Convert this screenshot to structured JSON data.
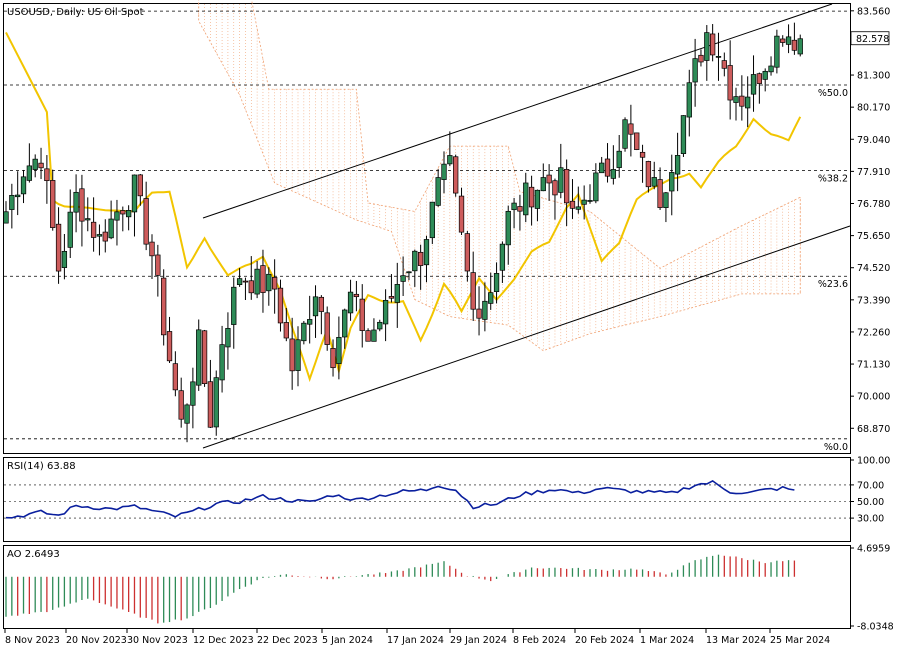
{
  "header": {
    "main_title": "USOUSD, Daily:  US Oil Spot",
    "rsi_title": "RSI(14) 63.88",
    "ao_title": "AO 2.6493"
  },
  "colors": {
    "bull": "#2e8b57",
    "bear": "#cd5c5c",
    "ma": "#f2c500",
    "rsi": "#0a1f9e",
    "ao_up": "#2e8b57",
    "ao_down": "#cd3030",
    "cloud": "#f0a070",
    "grid": "#000000"
  },
  "chart_data": [
    {
      "type": "candlestick",
      "title": "USOUSD, Daily:  US Oil Spot",
      "price_labels": [
        "83.560",
        "81.300",
        "80.170",
        "79.040",
        "77.910",
        "76.780",
        "75.650",
        "74.520",
        "73.390",
        "72.260",
        "71.130",
        "70.000",
        "68.870"
      ],
      "price_ylim": [
        68.0,
        83.8
      ],
      "current_price": "82.578",
      "x_labels": [
        "8 Nov 2023",
        "20 Nov 2023",
        "30 Nov 2023",
        "12 Dec 2023",
        "22 Dec 2023",
        "5 Jan 2024",
        "17 Jan 2024",
        "29 Jan 2024",
        "8 Feb 2024",
        "20 Feb 2024",
        "1 Mar 2024",
        "13 Mar 2024",
        "25 Mar 2024"
      ],
      "fibonacci": [
        {
          "label": "%0.0",
          "price": 68.5
        },
        {
          "label": "%23.6",
          "price": 74.22
        },
        {
          "label": "%38.2",
          "price": 77.94
        },
        {
          "label": "%50.0",
          "price": 80.95
        },
        {
          "label": "",
          "price": 83.55
        }
      ],
      "ma_label": "",
      "channel": {
        "lower": [
          [
            0,
            68.5
          ],
          [
            136,
            75.3
          ]
        ],
        "upper": [
          [
            0,
            76.5
          ],
          [
            136,
            83.7
          ]
        ]
      }
    },
    {
      "type": "line",
      "title": "RSI(14) 63.88",
      "y_labels": [
        "100.00",
        "70.00",
        "50.00",
        "30.00"
      ],
      "ylim": [
        0,
        100
      ],
      "levels": [
        70,
        50,
        30
      ],
      "last_value": 63.88
    },
    {
      "type": "bar",
      "title": "AO 2.6493",
      "y_labels": [
        "4.6959",
        "-8.0348"
      ],
      "ylim": [
        -8.0348,
        4.6959
      ],
      "last_value": 2.6493
    }
  ]
}
